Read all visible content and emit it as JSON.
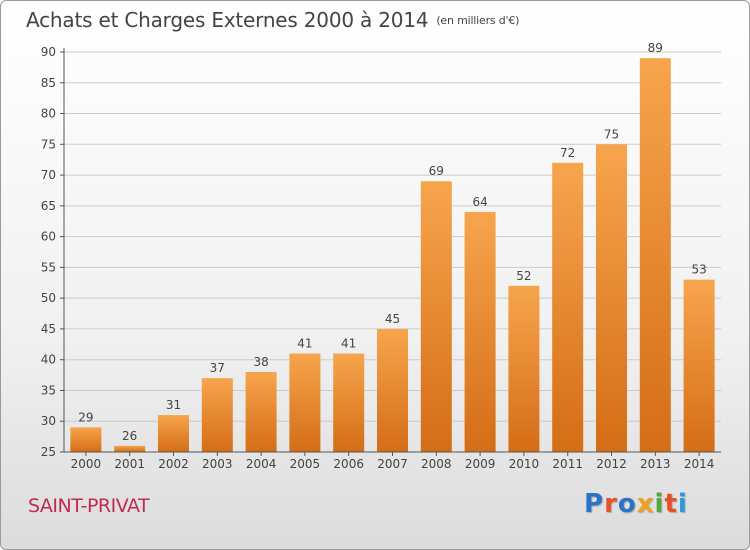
{
  "header": {
    "title": "Achats et Charges Externes 2000 à 2014",
    "unit": "(en milliers d'€)"
  },
  "footer": {
    "city": "SAINT-PRIVAT",
    "logo_text": "Proxiti",
    "logo_colors": [
      "#2a73c8",
      "#e8502a",
      "#2a73c8",
      "#f0a020",
      "#53a83a",
      "#e8502a",
      "#2a9ad8"
    ]
  },
  "colors": {
    "bar_light": "#f7a54d",
    "bar_dark": "#d46d16",
    "grid": "#cccccc",
    "axis": "#555555"
  },
  "chart_data": {
    "type": "bar",
    "title": "Achats et Charges Externes 2000 à 2014",
    "subtitle": "(en milliers d'€)",
    "categories": [
      "2000",
      "2001",
      "2002",
      "2003",
      "2004",
      "2005",
      "2006",
      "2007",
      "2008",
      "2009",
      "2010",
      "2011",
      "2012",
      "2013",
      "2014"
    ],
    "values": [
      29,
      26,
      31,
      37,
      38,
      41,
      41,
      45,
      69,
      64,
      52,
      72,
      75,
      89,
      53
    ],
    "ylim": [
      25,
      90
    ],
    "yticks": [
      25,
      30,
      35,
      40,
      45,
      50,
      55,
      60,
      65,
      70,
      75,
      80,
      85,
      90
    ],
    "grid": true,
    "legend": "none"
  }
}
